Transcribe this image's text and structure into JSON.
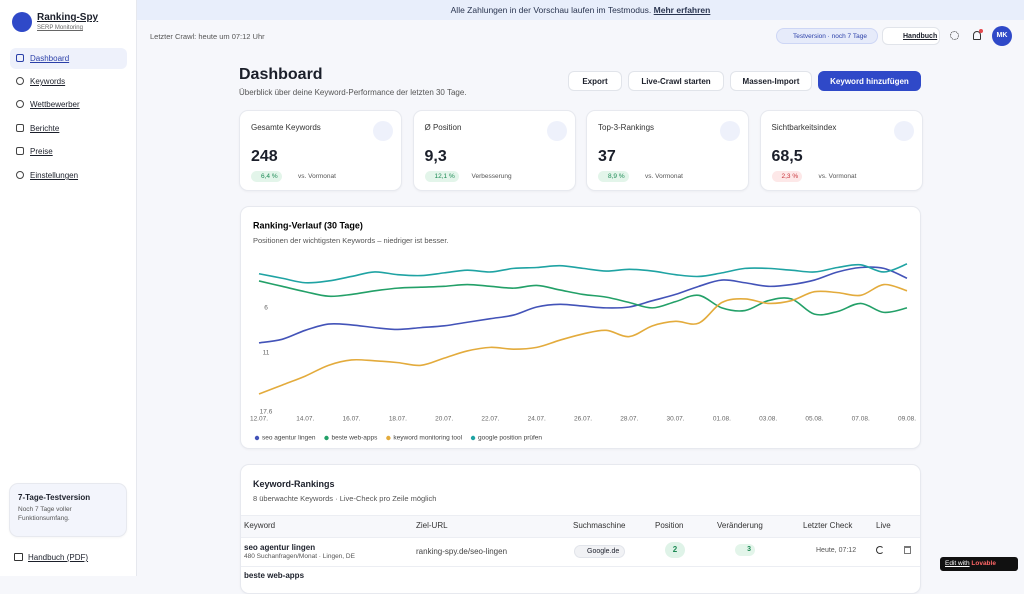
{
  "banner": {
    "text": "Alle Zahlungen in der Vorschau laufen im Testmodus.",
    "link": "Mehr erfahren"
  },
  "sidebar": {
    "brand": "Ranking-Spy",
    "brand_sub": "SERP Monitoring",
    "nav": [
      "Dashboard",
      "Keywords",
      "Wettbewerber",
      "Berichte",
      "Preise",
      "Einstellungen"
    ],
    "trial_title": "7-Tage-Testversion",
    "trial_text": "Noch 7 Tage voller Funktionsumfang.",
    "manual": "Handbuch (PDF)"
  },
  "header": {
    "last_crawl": "Letzter Crawl: heute um 07:12 Uhr",
    "trial_badge": "Testversion · noch 7 Tage",
    "manual": "Handbuch",
    "avatar": "MK"
  },
  "dashboard": {
    "title": "Dashboard",
    "subtitle": "Überblick über deine Keyword-Performance der letzten 30 Tage.",
    "buttons": [
      "Export",
      "Live-Crawl starten",
      "Massen-Import",
      "Keyword hinzufügen"
    ]
  },
  "stats": [
    {
      "label": "Gesamte Keywords",
      "value": "248",
      "change": "6,4 %",
      "note": "vs. Vormonat"
    },
    {
      "label": "Ø Position",
      "value": "9,3",
      "change": "12,1 %",
      "note": "Verbesserung"
    },
    {
      "label": "Top-3-Rankings",
      "value": "37",
      "change": "8,9 %",
      "note": "vs. Vormonat"
    },
    {
      "label": "Sichtbarkeitsindex",
      "value": "68,5",
      "change": "2,3 %",
      "note": "vs. Vormonat"
    }
  ],
  "chart_data": {
    "type": "line",
    "title": "Ranking-Verlauf (30 Tage)",
    "subtitle": "Positionen der wichtigsten Keywords – niedriger ist besser.",
    "categories": [
      "12.07.",
      null,
      "14.07.",
      null,
      "16.07.",
      null,
      "18.07.",
      null,
      "20.07.",
      null,
      "22.07.",
      null,
      "24.07.",
      null,
      "26.07.",
      null,
      "28.07.",
      null,
      "30.07.",
      null,
      "01.08.",
      null,
      "03.08.",
      null,
      "05.08.",
      null,
      "07.08.",
      null,
      "09.08."
    ],
    "ylim": [
      1,
      17.6
    ],
    "inverted": true,
    "yticks": [
      6,
      11,
      17.6
    ],
    "grid": false,
    "legend": "bottom",
    "series": [
      {
        "name": "seo agentur lingen",
        "color": "#4353b8",
        "values": [
          9.9,
          9.5,
          8.5,
          7.8,
          7.9,
          8.2,
          8.4,
          8.2,
          8.0,
          7.6,
          7.2,
          6.8,
          5.9,
          5.6,
          5.8,
          6.0,
          5.9,
          5.2,
          4.5,
          3.6,
          2.9,
          3.2,
          3.6,
          3.4,
          2.9,
          2.0,
          1.5,
          1.6,
          2.7
        ]
      },
      {
        "name": "beste web-apps",
        "color": "#23a068",
        "values": [
          3.0,
          3.6,
          4.2,
          4.7,
          4.5,
          4.1,
          3.8,
          3.7,
          3.6,
          3.4,
          3.6,
          3.8,
          3.5,
          4.0,
          4.5,
          4.8,
          5.4,
          6.0,
          5.3,
          4.6,
          6.0,
          6.3,
          5.2,
          5.0,
          6.7,
          6.4,
          5.5,
          6.5,
          6.0
        ]
      },
      {
        "name": "keyword monitoring tool",
        "color": "#e3ab3c",
        "values": [
          15.6,
          14.6,
          13.6,
          12.4,
          11.8,
          11.9,
          12.1,
          12.4,
          11.6,
          10.8,
          10.4,
          10.6,
          10.4,
          9.6,
          8.9,
          8.5,
          9.2,
          8.0,
          7.5,
          7.7,
          5.4,
          5.0,
          5.5,
          5.2,
          4.2,
          4.3,
          4.6,
          3.4,
          4.1
        ]
      },
      {
        "name": "google position prüfen",
        "color": "#1fa3a3",
        "values": [
          2.2,
          2.7,
          3.2,
          3.0,
          2.5,
          2.0,
          2.3,
          2.4,
          2.1,
          1.8,
          2.0,
          1.6,
          1.5,
          1.3,
          1.6,
          1.9,
          1.7,
          1.9,
          2.3,
          2.5,
          2.1,
          1.6,
          1.6,
          1.8,
          2.0,
          1.5,
          1.2,
          2.0,
          1.1
        ]
      }
    ]
  },
  "table": {
    "title": "Keyword-Rankings",
    "subtitle": "8 überwachte Keywords · Live-Check pro Zeile möglich",
    "columns": [
      "Keyword",
      "Ziel-URL",
      "Suchmaschine",
      "Position",
      "Veränderung",
      "Letzter Check",
      "Live"
    ],
    "rows": [
      {
        "keyword": "seo agentur lingen",
        "meta": "480 Suchanfragen/Monat · Lingen, DE",
        "url": "ranking-spy.de/seo-lingen",
        "engine": "Google.de",
        "position": "2",
        "change": "3",
        "checked": "Heute, 07:12"
      },
      {
        "keyword": "beste web-apps"
      }
    ]
  },
  "badge": {
    "text": "Edit with",
    "brand": "Lovable"
  }
}
